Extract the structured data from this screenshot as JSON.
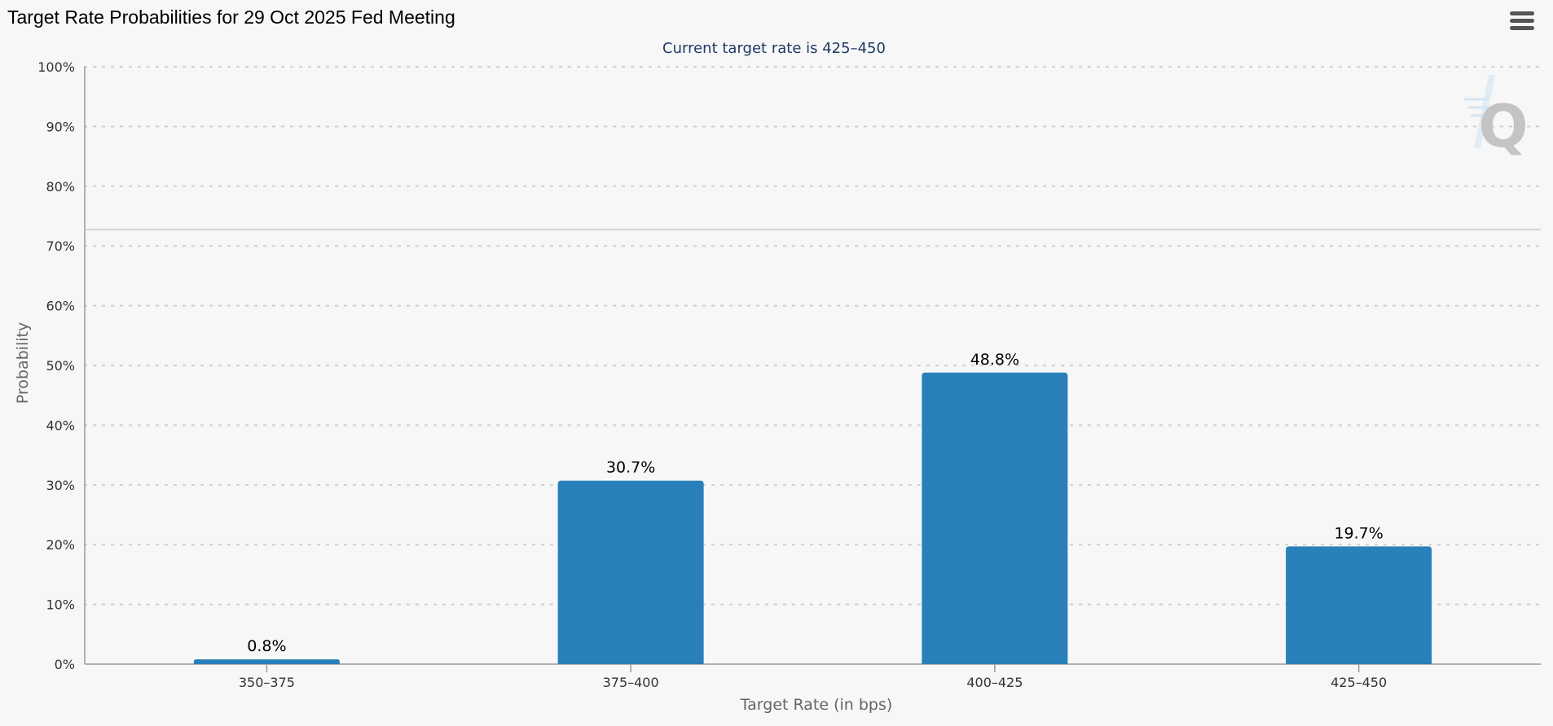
{
  "header": {
    "title": "Target Rate Probabilities for 29 Oct 2025 Fed Meeting",
    "menu_icon": "hamburger-menu-icon",
    "watermark": "Q",
    "watermark_icon": "q-logo-icon"
  },
  "colors": {
    "bar": "#2980b9",
    "background": "#f7f7f7",
    "grid": "#d0d0d0",
    "subtitle": "#1f3a63"
  },
  "chart_data": {
    "type": "bar",
    "title": "Target Rate Probabilities for 29 Oct 2025 Fed Meeting",
    "subtitle": "Current target rate is 425–450",
    "xlabel": "Target Rate (in bps)",
    "ylabel": "Probability",
    "categories": [
      "350–375",
      "375–400",
      "400–425",
      "425–450"
    ],
    "values": [
      0.8,
      30.7,
      48.8,
      19.7
    ],
    "data_labels": [
      "0.8%",
      "30.7%",
      "48.8%",
      "19.7%"
    ],
    "ylim": [
      0,
      100
    ],
    "yticks": [
      0,
      10,
      20,
      30,
      40,
      50,
      60,
      70,
      80,
      90,
      100
    ],
    "ytick_labels": [
      "0%",
      "10%",
      "20%",
      "30%",
      "40%",
      "50%",
      "60%",
      "70%",
      "80%",
      "90%",
      "100%"
    ],
    "grid": true,
    "legend": false
  }
}
